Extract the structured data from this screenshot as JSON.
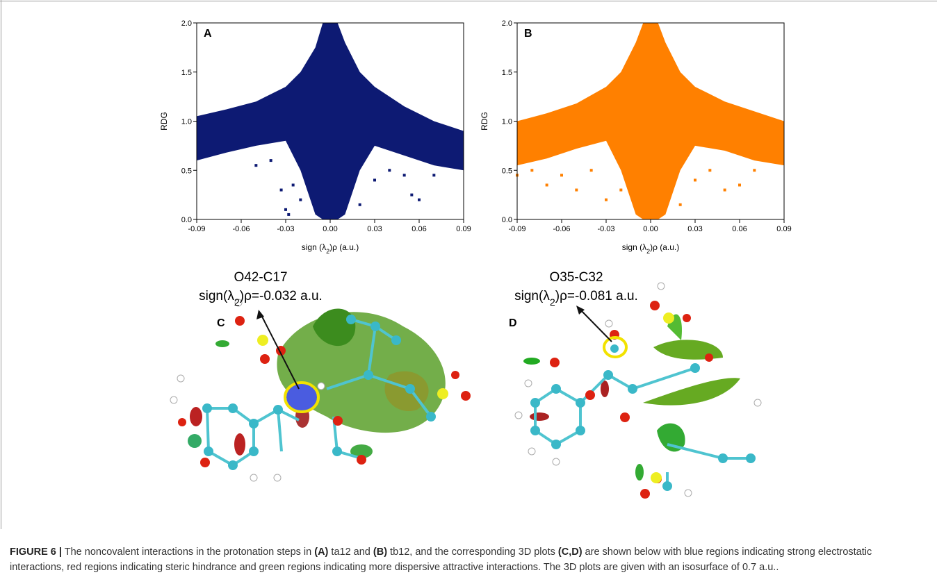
{
  "chart_data": [
    {
      "type": "scatter",
      "panel": "A",
      "color": "#0d1a73",
      "xlim": [
        -0.09,
        0.09
      ],
      "ylim": [
        0,
        2
      ],
      "xticks": [
        -0.09,
        -0.06,
        -0.03,
        {
          "value": 0,
          "label": "0.00"
        },
        0.03,
        0.06,
        0.09
      ],
      "yticks": [
        {
          "value": 0,
          "label": "0.0"
        },
        0.5,
        {
          "value": 1,
          "label": "1.0"
        },
        1.5,
        {
          "value": 2,
          "label": "2.0"
        }
      ],
      "x_label": [
        "sign (λ",
        "2",
        ")ρ (a.u.)"
      ],
      "y_label": "RDG",
      "envelope": {
        "x": [
          -0.09,
          -0.07,
          -0.05,
          -0.03,
          -0.02,
          -0.01,
          -0.005,
          0,
          0.005,
          0.01,
          0.02,
          0.03,
          0.05,
          0.07,
          0.09
        ],
        "upper": [
          1.05,
          1.12,
          1.2,
          1.35,
          1.5,
          1.75,
          2,
          2,
          2,
          1.8,
          1.5,
          1.35,
          1.15,
          1,
          0.9
        ],
        "lower": [
          0.6,
          0.68,
          0.75,
          0.8,
          0.5,
          0.05,
          0,
          0,
          0,
          0.05,
          0.5,
          0.75,
          0.65,
          0.55,
          0.5
        ]
      },
      "points": {
        "x": [
          -0.05,
          -0.04,
          -0.033,
          -0.03,
          -0.028,
          -0.025,
          -0.02,
          0.02,
          0.03,
          0.04,
          0.05,
          0.055,
          0.06,
          0.07
        ],
        "y": [
          0.55,
          0.6,
          0.3,
          0.1,
          0.05,
          0.35,
          0.2,
          0.15,
          0.4,
          0.5,
          0.45,
          0.25,
          0.2,
          0.45
        ]
      }
    },
    {
      "type": "scatter",
      "panel": "B",
      "color": "#ff8000",
      "xlim": [
        -0.09,
        0.09
      ],
      "ylim": [
        0,
        2
      ],
      "xticks": [
        -0.09,
        -0.06,
        -0.03,
        {
          "value": 0,
          "label": "0.00"
        },
        0.03,
        0.06,
        0.09
      ],
      "yticks": [
        {
          "value": 0,
          "label": "0.0"
        },
        0.5,
        {
          "value": 1,
          "label": "1.0"
        },
        1.5,
        {
          "value": 2,
          "label": "2.0"
        }
      ],
      "x_label": [
        "sign (λ",
        "2",
        ")ρ (a.u.)"
      ],
      "y_label": "RDG",
      "envelope": {
        "x": [
          -0.09,
          -0.07,
          -0.05,
          -0.03,
          -0.02,
          -0.01,
          -0.005,
          0,
          0.005,
          0.01,
          0.02,
          0.03,
          0.05,
          0.07,
          0.09
        ],
        "upper": [
          1,
          1.08,
          1.18,
          1.35,
          1.5,
          1.8,
          2,
          2,
          2,
          1.8,
          1.5,
          1.35,
          1.2,
          1.1,
          1
        ],
        "lower": [
          0.55,
          0.62,
          0.72,
          0.8,
          0.5,
          0.05,
          0,
          0,
          0,
          0.05,
          0.5,
          0.75,
          0.7,
          0.6,
          0.55
        ]
      },
      "points": {
        "x": [
          -0.09,
          -0.08,
          -0.07,
          -0.06,
          -0.05,
          -0.04,
          -0.03,
          -0.02,
          0.02,
          0.03,
          0.04,
          0.05,
          0.06,
          0.07
        ],
        "y": [
          0.45,
          0.5,
          0.35,
          0.45,
          0.3,
          0.5,
          0.2,
          0.3,
          0.15,
          0.4,
          0.5,
          0.3,
          0.35,
          0.5
        ]
      }
    }
  ],
  "panels": [
    {
      "letter": "C",
      "bond": "O42-C17",
      "annotation": [
        "sign(λ",
        "2",
        ")ρ=-0.032 a.u."
      ]
    },
    {
      "letter": "D",
      "bond": "O35-C32",
      "annotation": [
        "sign(λ",
        "2",
        ")ρ=-0.081 a.u."
      ]
    }
  ],
  "caption": [
    {
      "text": "FIGURE 6 |",
      "bold": true
    },
    {
      "text": " The noncovalent interactions in the protonation steps in ",
      "bold": false
    },
    {
      "text": "(A)",
      "bold": true
    },
    {
      "text": " ta12 and ",
      "bold": false
    },
    {
      "text": "(B)",
      "bold": true
    },
    {
      "text": " tb12, and the corresponding 3D plots ",
      "bold": false
    },
    {
      "text": "(C,D)",
      "bold": true
    },
    {
      "text": " are shown below with blue regions indicating strong electrostatic interactions, red regions indicating steric hindrance and green regions indicating more dispersive attractive interactions. The 3D plots are given with an isosurface of 0.7 a.u..",
      "bold": false
    }
  ]
}
